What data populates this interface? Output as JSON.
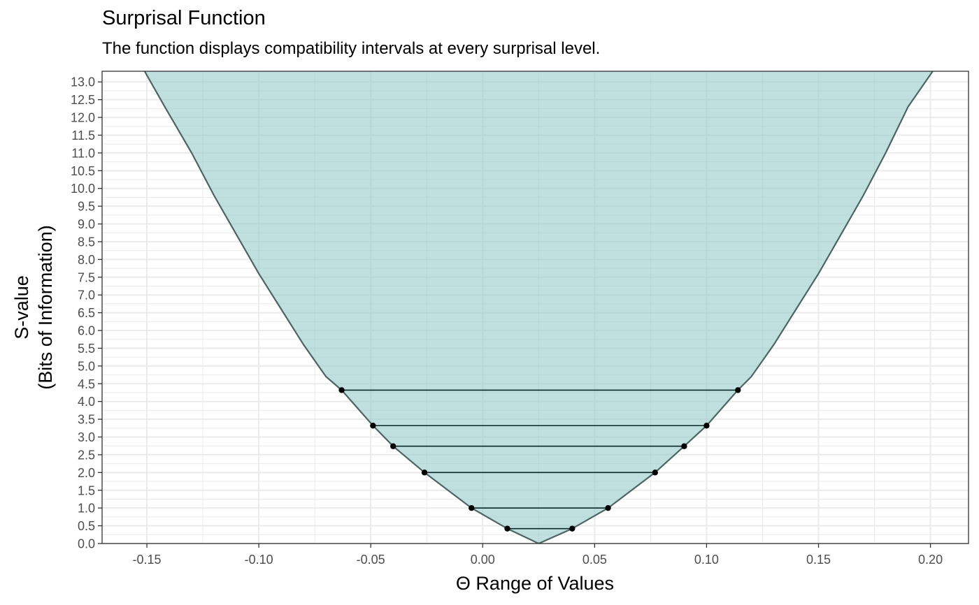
{
  "title": "Surprisal Function",
  "subtitle": "The function displays compatibility intervals at every surprisal level.",
  "colors": {
    "fill": "#99cccc",
    "curve": "#4d6464",
    "interval": "#0a2828",
    "grid": "#ebebeb"
  },
  "chart_data": {
    "type": "area",
    "title": "Surprisal Function",
    "subtitle": "The function displays compatibility intervals at every surprisal level.",
    "xlabel": "Θ Range of Values",
    "ylabel_lines": [
      "S-value",
      "(Bits of Information)"
    ],
    "xlim": [
      -0.17,
      0.217
    ],
    "ylim": [
      0,
      13.3
    ],
    "xticks": [
      -0.15,
      -0.1,
      -0.05,
      0.0,
      0.05,
      0.1,
      0.15,
      0.2
    ],
    "xtick_labels": [
      "-0.15",
      "-0.10",
      "-0.05",
      "0.00",
      "0.05",
      "0.10",
      "0.15",
      "0.20"
    ],
    "yticks": [
      0.0,
      0.5,
      1.0,
      1.5,
      2.0,
      2.5,
      3.0,
      3.5,
      4.0,
      4.5,
      5.0,
      5.5,
      6.0,
      6.5,
      7.0,
      7.5,
      8.0,
      8.5,
      9.0,
      9.5,
      10.0,
      10.5,
      11.0,
      11.5,
      12.0,
      12.5,
      13.0
    ],
    "ytick_labels": [
      "0.0",
      "0.5",
      "1.0",
      "1.5",
      "2.0",
      "2.5",
      "3.0",
      "3.5",
      "4.0",
      "4.5",
      "5.0",
      "5.5",
      "6.0",
      "6.5",
      "7.0",
      "7.5",
      "8.0",
      "8.5",
      "9.0",
      "9.5",
      "10.0",
      "10.5",
      "11.0",
      "11.5",
      "12.0",
      "12.5",
      "13.0"
    ],
    "grid": true,
    "point_estimate": 0.025,
    "curve_points": [
      {
        "x": -0.151,
        "y": 13.3
      },
      {
        "x": -0.142,
        "y": 12.3
      },
      {
        "x": -0.13,
        "y": 11.0
      },
      {
        "x": -0.12,
        "y": 9.8
      },
      {
        "x": -0.11,
        "y": 8.7
      },
      {
        "x": -0.1,
        "y": 7.6
      },
      {
        "x": -0.09,
        "y": 6.6
      },
      {
        "x": -0.08,
        "y": 5.6
      },
      {
        "x": -0.07,
        "y": 4.7
      },
      {
        "x": -0.063,
        "y": 4.32
      },
      {
        "x": -0.049,
        "y": 3.32
      },
      {
        "x": -0.04,
        "y": 2.74
      },
      {
        "x": -0.026,
        "y": 2.0
      },
      {
        "x": -0.005,
        "y": 1.0
      },
      {
        "x": 0.011,
        "y": 0.42
      },
      {
        "x": 0.025,
        "y": 0.0
      },
      {
        "x": 0.04,
        "y": 0.42
      },
      {
        "x": 0.056,
        "y": 1.0
      },
      {
        "x": 0.077,
        "y": 2.0
      },
      {
        "x": 0.09,
        "y": 2.74
      },
      {
        "x": 0.1,
        "y": 3.32
      },
      {
        "x": 0.114,
        "y": 4.32
      },
      {
        "x": 0.12,
        "y": 4.7
      },
      {
        "x": 0.13,
        "y": 5.6
      },
      {
        "x": 0.14,
        "y": 6.6
      },
      {
        "x": 0.15,
        "y": 7.6
      },
      {
        "x": 0.16,
        "y": 8.7
      },
      {
        "x": 0.17,
        "y": 9.8
      },
      {
        "x": 0.18,
        "y": 11.0
      },
      {
        "x": 0.19,
        "y": 12.3
      },
      {
        "x": 0.201,
        "y": 13.3
      }
    ],
    "intervals": [
      {
        "s": 4.32,
        "lower": -0.063,
        "upper": 0.114
      },
      {
        "s": 3.32,
        "lower": -0.049,
        "upper": 0.1
      },
      {
        "s": 2.74,
        "lower": -0.04,
        "upper": 0.09
      },
      {
        "s": 2.0,
        "lower": -0.026,
        "upper": 0.077
      },
      {
        "s": 1.0,
        "lower": -0.005,
        "upper": 0.056
      },
      {
        "s": 0.42,
        "lower": 0.011,
        "upper": 0.04
      }
    ]
  }
}
